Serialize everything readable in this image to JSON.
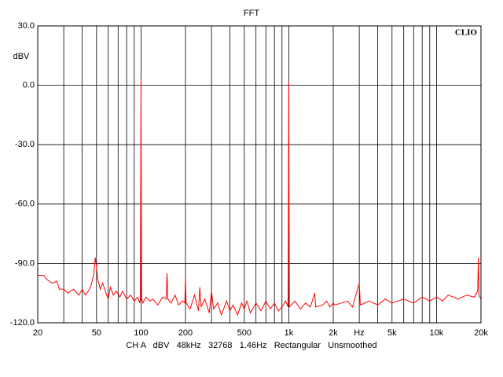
{
  "chart_data": {
    "type": "line",
    "title": "FFT",
    "watermark": "CLIO",
    "y_label": "dBV",
    "x_label": "Hz",
    "caption": "CH A   dBV   48kHz   32768   1.46Hz   Rectangular   Unsmoothed",
    "log_x": true,
    "grid": true,
    "xlim": [
      20,
      20000
    ],
    "ylim": [
      -120,
      30
    ],
    "xticks": [
      20,
      50,
      100,
      200,
      500,
      {
        "value": 1000,
        "label": "1k"
      },
      {
        "value": 2000,
        "label": "2k"
      },
      {
        "value": 5000,
        "label": "5k"
      },
      {
        "value": 10000,
        "label": "10k"
      },
      {
        "value": 20000,
        "label": "20k"
      }
    ],
    "xgrid": [
      30,
      40,
      60,
      70,
      80,
      90,
      300,
      400,
      600,
      700,
      800,
      900,
      3000,
      4000,
      6000,
      7000,
      8000,
      9000
    ],
    "yticks": [
      {
        "value": 30,
        "label": "30.0"
      },
      {
        "value": 0,
        "label": "0.0"
      },
      {
        "value": -30,
        "label": "-30.0"
      },
      {
        "value": -60,
        "label": "-60.0"
      },
      {
        "value": -90,
        "label": "-90.0"
      },
      {
        "value": -120,
        "label": "-120.0"
      }
    ],
    "series": [
      {
        "name": "CH A",
        "color": "#ff0000",
        "x": [
          20,
          22,
          23,
          25,
          27,
          28,
          30,
          32,
          35,
          38,
          40,
          42,
          44,
          46,
          48,
          49,
          50,
          51,
          53,
          55,
          58,
          60,
          62,
          65,
          68,
          72,
          75,
          80,
          85,
          90,
          95,
          98,
          99,
          100,
          101,
          103,
          108,
          115,
          120,
          130,
          140,
          148,
          150,
          152,
          160,
          170,
          180,
          190,
          198,
          200,
          202,
          215,
          230,
          245,
          250,
          255,
          270,
          290,
          300,
          310,
          330,
          350,
          380,
          400,
          420,
          450,
          480,
          500,
          520,
          550,
          600,
          650,
          700,
          750,
          800,
          850,
          900,
          950,
          990,
          1000,
          1010,
          1100,
          1200,
          1300,
          1400,
          1500,
          1520,
          1700,
          1800,
          1900,
          2000,
          2050,
          2500,
          2700,
          3000,
          3050,
          3500,
          4000,
          4500,
          5000,
          6000,
          7000,
          8000,
          9000,
          10000,
          11000,
          12000,
          14000,
          16000,
          18000,
          19000,
          19200,
          19400,
          20000
        ],
        "values": [
          -96,
          -96,
          -98,
          -100,
          -99,
          -103,
          -103,
          -105,
          -103,
          -106,
          -103,
          -106,
          -104,
          -101,
          -95,
          -87,
          -92,
          -98,
          -103,
          -100,
          -105,
          -108,
          -102,
          -106,
          -104,
          -107,
          -104,
          -108,
          -106,
          -109,
          -107,
          -110,
          -108,
          3,
          -108,
          -110,
          -107,
          -109,
          -108,
          -111,
          -107,
          -108,
          -95,
          -108,
          -110,
          -106,
          -111,
          -109,
          -110,
          -97,
          -110,
          -113,
          -106,
          -114,
          -102,
          -112,
          -108,
          -115,
          -104,
          -113,
          -110,
          -116,
          -109,
          -114,
          -111,
          -116,
          -110,
          -113,
          -109,
          -115,
          -110,
          -114,
          -109,
          -113,
          -110,
          -114,
          -112,
          -109,
          -112,
          2,
          -112,
          -109,
          -113,
          -110,
          -112,
          -105,
          -112,
          -111,
          -109,
          -112,
          -110,
          -111,
          -109,
          -112,
          -100,
          -111,
          -109,
          -111,
          -108,
          -110,
          -108,
          -110,
          -107,
          -109,
          -107,
          -109,
          -106,
          -108,
          -106,
          -107,
          -104,
          -87,
          -106,
          -108
        ]
      }
    ]
  }
}
